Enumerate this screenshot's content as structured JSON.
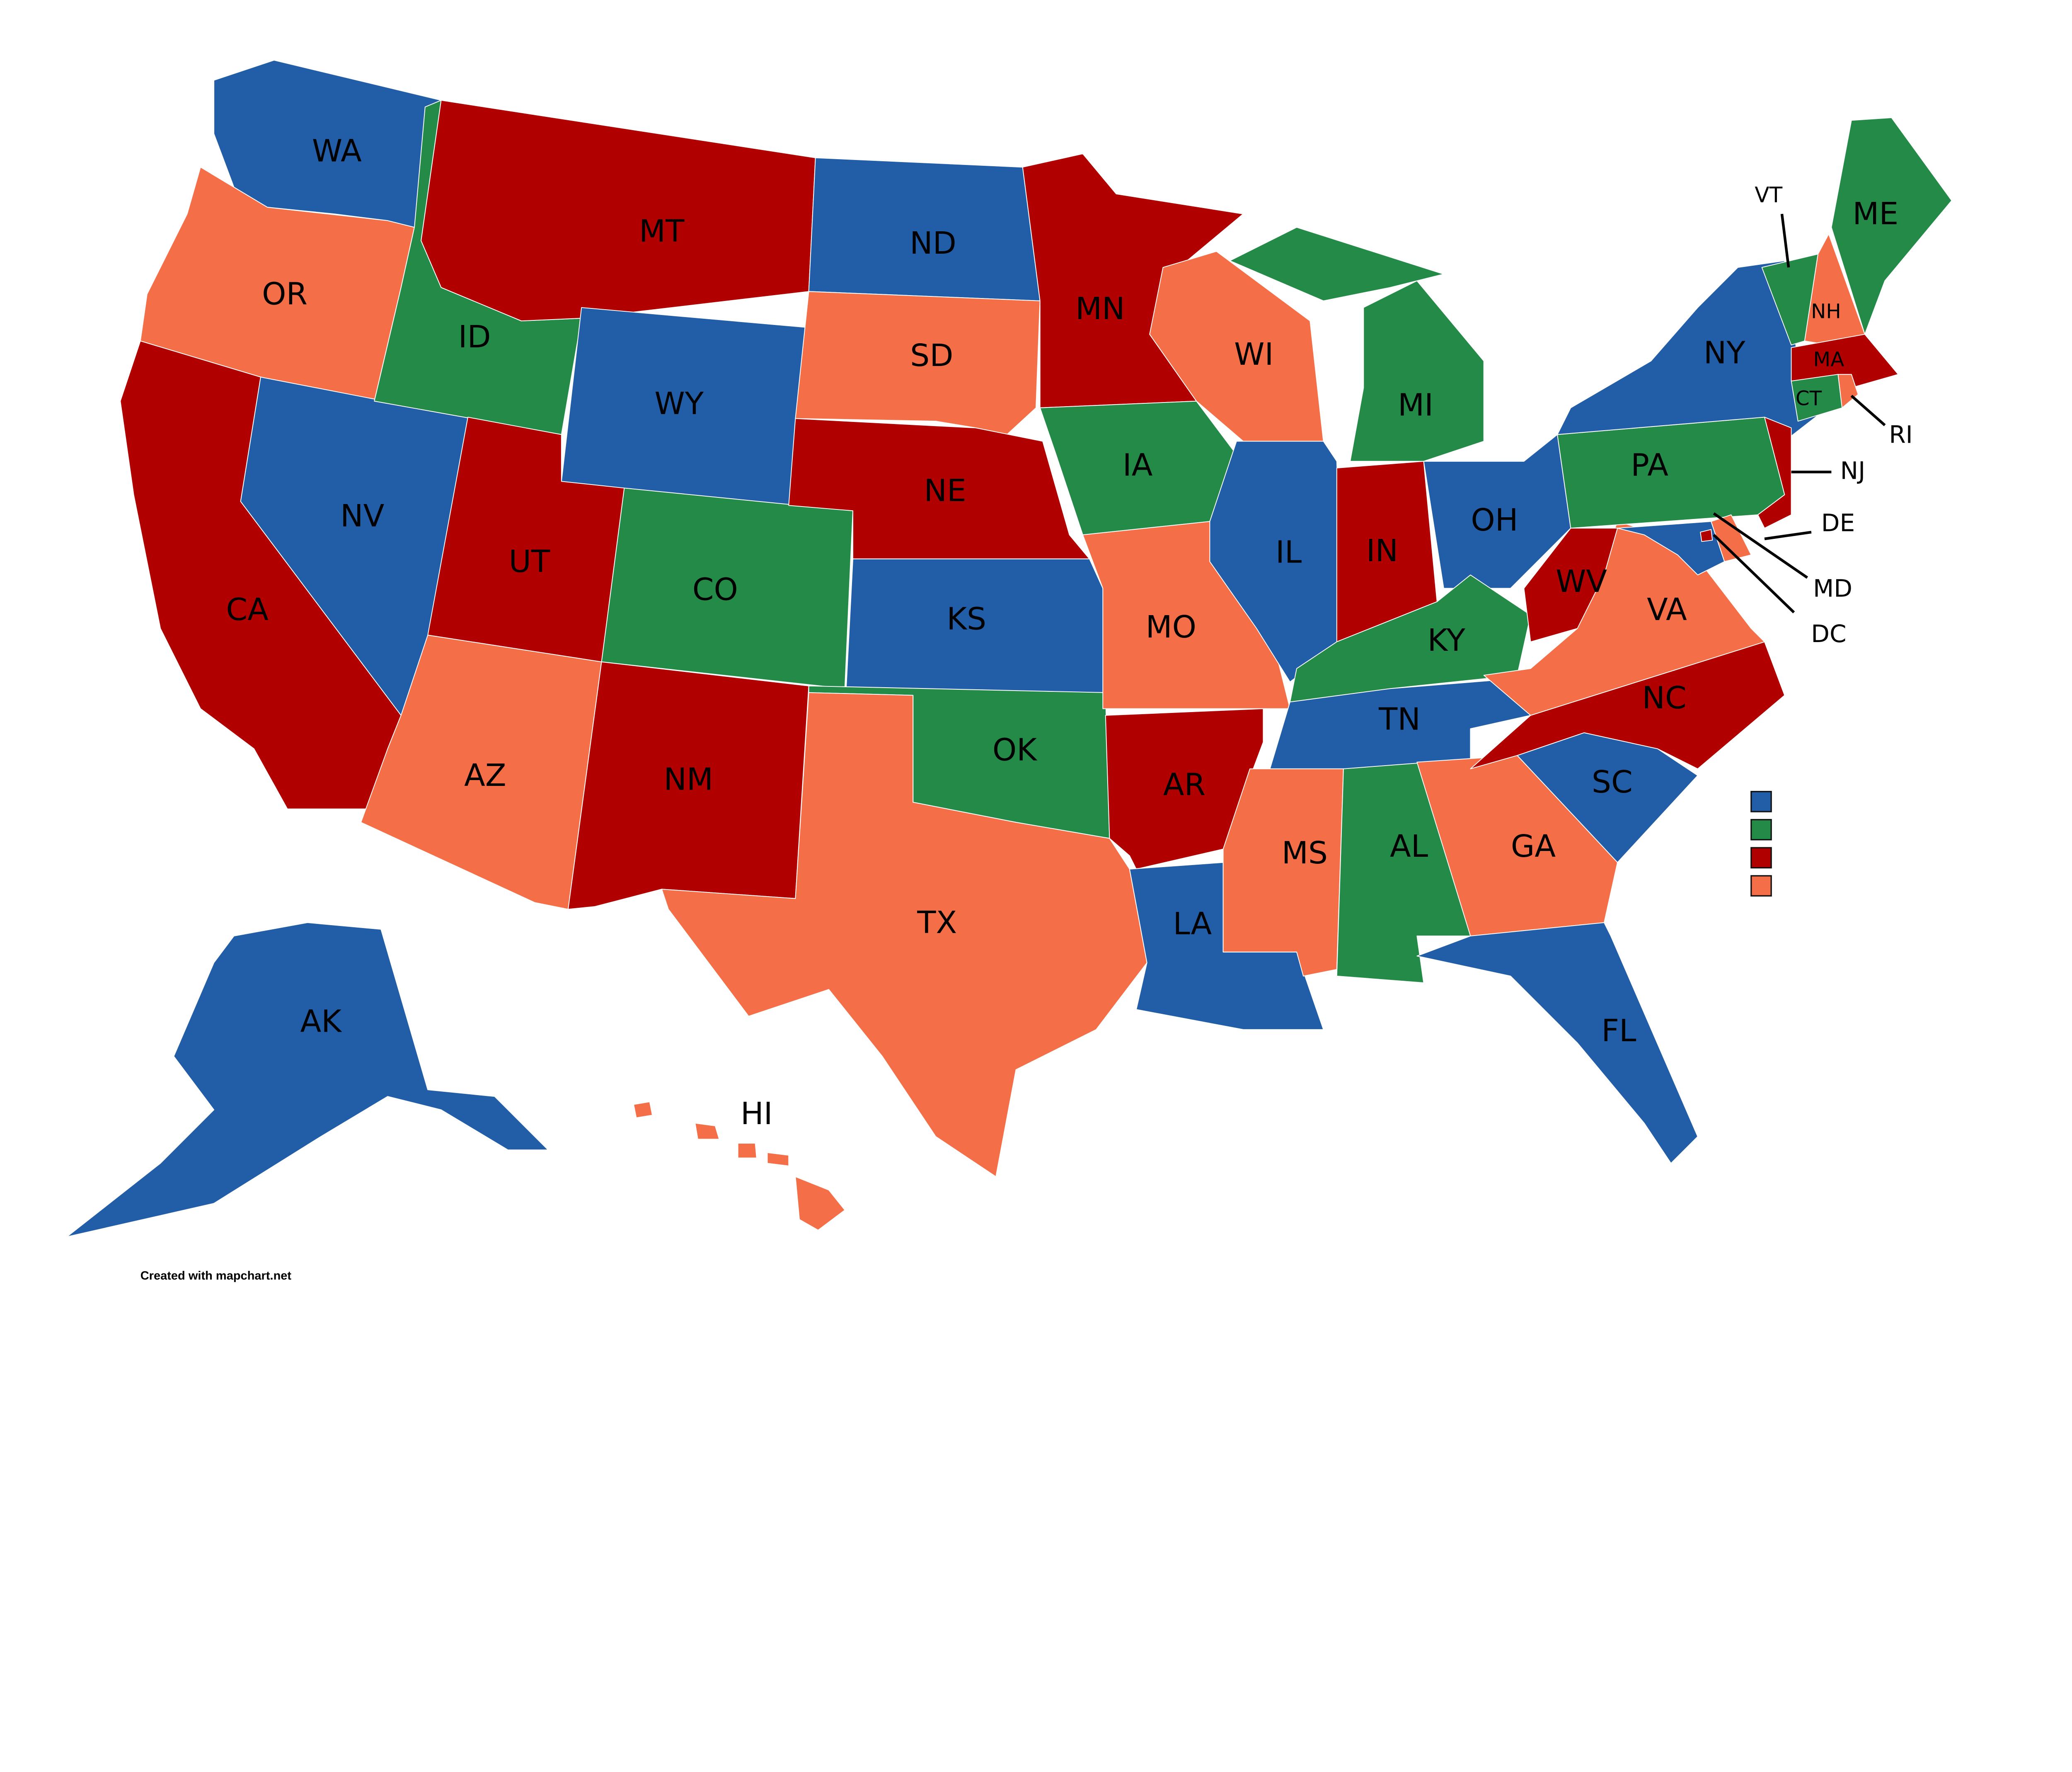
{
  "colors": {
    "blue": "#225ea8",
    "green": "#248a48",
    "red": "#b10000",
    "orange": "#f46f47"
  },
  "legend": [
    {
      "color_key": "blue"
    },
    {
      "color_key": "green"
    },
    {
      "color_key": "red"
    },
    {
      "color_key": "orange"
    }
  ],
  "states": [
    {
      "abbr": "WA",
      "color": "blue"
    },
    {
      "abbr": "OR",
      "color": "orange"
    },
    {
      "abbr": "CA",
      "color": "red"
    },
    {
      "abbr": "NV",
      "color": "blue"
    },
    {
      "abbr": "ID",
      "color": "green"
    },
    {
      "abbr": "MT",
      "color": "red"
    },
    {
      "abbr": "WY",
      "color": "blue"
    },
    {
      "abbr": "UT",
      "color": "red"
    },
    {
      "abbr": "AZ",
      "color": "orange"
    },
    {
      "abbr": "CO",
      "color": "green"
    },
    {
      "abbr": "NM",
      "color": "red"
    },
    {
      "abbr": "ND",
      "color": "blue"
    },
    {
      "abbr": "SD",
      "color": "orange"
    },
    {
      "abbr": "NE",
      "color": "red"
    },
    {
      "abbr": "KS",
      "color": "blue"
    },
    {
      "abbr": "OK",
      "color": "green"
    },
    {
      "abbr": "TX",
      "color": "orange"
    },
    {
      "abbr": "MN",
      "color": "red"
    },
    {
      "abbr": "IA",
      "color": "green"
    },
    {
      "abbr": "MO",
      "color": "orange"
    },
    {
      "abbr": "AR",
      "color": "red"
    },
    {
      "abbr": "LA",
      "color": "blue"
    },
    {
      "abbr": "WI",
      "color": "orange"
    },
    {
      "abbr": "IL",
      "color": "blue"
    },
    {
      "abbr": "MI",
      "color": "green"
    },
    {
      "abbr": "IN",
      "color": "red"
    },
    {
      "abbr": "OH",
      "color": "blue"
    },
    {
      "abbr": "KY",
      "color": "green"
    },
    {
      "abbr": "TN",
      "color": "blue"
    },
    {
      "abbr": "MS",
      "color": "orange"
    },
    {
      "abbr": "AL",
      "color": "green"
    },
    {
      "abbr": "GA",
      "color": "orange"
    },
    {
      "abbr": "FL",
      "color": "blue"
    },
    {
      "abbr": "SC",
      "color": "blue"
    },
    {
      "abbr": "NC",
      "color": "red"
    },
    {
      "abbr": "VA",
      "color": "orange"
    },
    {
      "abbr": "WV",
      "color": "red"
    },
    {
      "abbr": "PA",
      "color": "green"
    },
    {
      "abbr": "NY",
      "color": "blue"
    },
    {
      "abbr": "NJ",
      "color": "red"
    },
    {
      "abbr": "DE",
      "color": "orange"
    },
    {
      "abbr": "MD",
      "color": "blue"
    },
    {
      "abbr": "DC",
      "color": "red"
    },
    {
      "abbr": "VT",
      "color": "green"
    },
    {
      "abbr": "NH",
      "color": "orange"
    },
    {
      "abbr": "ME",
      "color": "green"
    },
    {
      "abbr": "MA",
      "color": "red"
    },
    {
      "abbr": "CT",
      "color": "green"
    },
    {
      "abbr": "RI",
      "color": "orange"
    },
    {
      "abbr": "AK",
      "color": "blue"
    },
    {
      "abbr": "HI",
      "color": "orange"
    }
  ],
  "footer": "Created with mapchart.net"
}
